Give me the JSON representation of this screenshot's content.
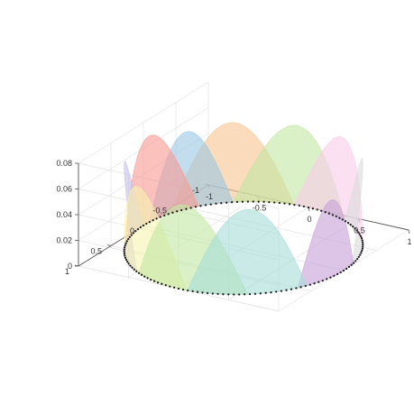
{
  "chart_data": {
    "type": "area",
    "title": "",
    "xlabel": "",
    "ylabel": "",
    "zlabel": "",
    "grid": true,
    "box": false,
    "view": "3d",
    "xlim": [
      -1,
      1
    ],
    "ylim": [
      -1,
      1
    ],
    "zlim": [
      0,
      0.08
    ],
    "x_ticks": [
      "-1",
      "-0.5",
      "0",
      "0.5",
      "1"
    ],
    "y_ticks": [
      "-1",
      "-0.5",
      "0",
      "0.5",
      "1"
    ],
    "z_ticks": [
      "0",
      "0.02",
      "0.04",
      "0.06",
      "0.08"
    ],
    "curve": {
      "shape": "unit circle",
      "radius": 1,
      "marker": "dotted black line",
      "marker_color": "#222222",
      "num_points": 64
    },
    "series": [
      {
        "theta_start_deg": -10,
        "theta_end_deg": 30,
        "peak": 0.06,
        "color": "#c7a1d8"
      },
      {
        "theta_start_deg": 25,
        "theta_end_deg": 85,
        "peak": 0.066,
        "color": "#a8ddd6"
      },
      {
        "theta_start_deg": 55,
        "theta_end_deg": 118,
        "peak": 0.066,
        "color": "#c4e6a4"
      },
      {
        "theta_start_deg": 85,
        "theta_end_deg": 150,
        "peak": 0.067,
        "color": "#f6f3b0"
      },
      {
        "theta_start_deg": 120,
        "theta_end_deg": 180,
        "peak": 0.067,
        "color": "#c6c0e8"
      },
      {
        "theta_start_deg": 155,
        "theta_end_deg": 215,
        "peak": 0.067,
        "color": "#f79b95"
      },
      {
        "theta_start_deg": 185,
        "theta_end_deg": 232,
        "peak": 0.06,
        "color": "#9cc8e4"
      },
      {
        "theta_start_deg": 200,
        "theta_end_deg": 262,
        "peak": 0.062,
        "color": "#f7c592"
      },
      {
        "theta_start_deg": 232,
        "theta_end_deg": 295,
        "peak": 0.062,
        "color": "#c4e6a4"
      },
      {
        "theta_start_deg": 262,
        "theta_end_deg": 325,
        "peak": 0.064,
        "color": "#f7cde9"
      },
      {
        "theta_start_deg": 295,
        "theta_end_deg": 352,
        "peak": 0.064,
        "color": "#dcdcdc"
      }
    ]
  }
}
